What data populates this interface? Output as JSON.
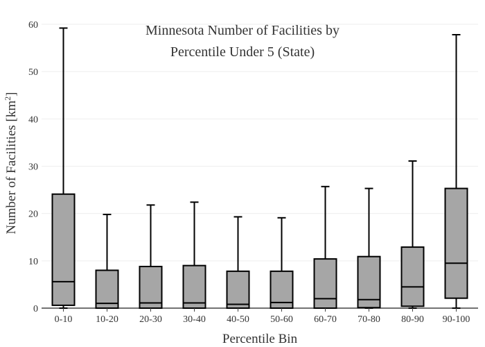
{
  "chart_data": {
    "type": "box",
    "title_lines": [
      "Minnesota Number of Facilities by",
      "Percentile Under 5 (State)"
    ],
    "xlabel": "Percentile Bin",
    "ylabel_main": "Number of Facilities  [km",
    "ylabel_sup": "2",
    "ylabel_end": "]",
    "ylim": [
      0,
      60
    ],
    "yticks": [
      0,
      10,
      20,
      30,
      40,
      50,
      60
    ],
    "grid": true,
    "box_color": "#a6a6a6",
    "categories": [
      "0-10",
      "10-20",
      "20-30",
      "30-40",
      "40-50",
      "50-60",
      "60-70",
      "70-80",
      "80-90",
      "90-100"
    ],
    "boxes": [
      {
        "min": 0,
        "q1": 0.6,
        "median": 5.6,
        "q3": 24.1,
        "max": 59.2
      },
      {
        "min": 0,
        "q1": 0,
        "median": 1.0,
        "q3": 8.0,
        "max": 19.8
      },
      {
        "min": 0,
        "q1": 0,
        "median": 1.1,
        "q3": 8.8,
        "max": 21.8
      },
      {
        "min": 0,
        "q1": 0,
        "median": 1.1,
        "q3": 9.0,
        "max": 22.4
      },
      {
        "min": 0,
        "q1": 0,
        "median": 0.8,
        "q3": 7.8,
        "max": 19.3
      },
      {
        "min": 0,
        "q1": 0,
        "median": 1.2,
        "q3": 7.8,
        "max": 19.1
      },
      {
        "min": 0,
        "q1": 0,
        "median": 2.0,
        "q3": 10.4,
        "max": 25.7
      },
      {
        "min": 0,
        "q1": 0.1,
        "median": 1.8,
        "q3": 10.9,
        "max": 25.3
      },
      {
        "min": 0,
        "q1": 0.4,
        "median": 4.5,
        "q3": 12.9,
        "max": 31.1
      },
      {
        "min": 0,
        "q1": 2.1,
        "median": 9.5,
        "q3": 25.3,
        "max": 57.8
      }
    ]
  }
}
